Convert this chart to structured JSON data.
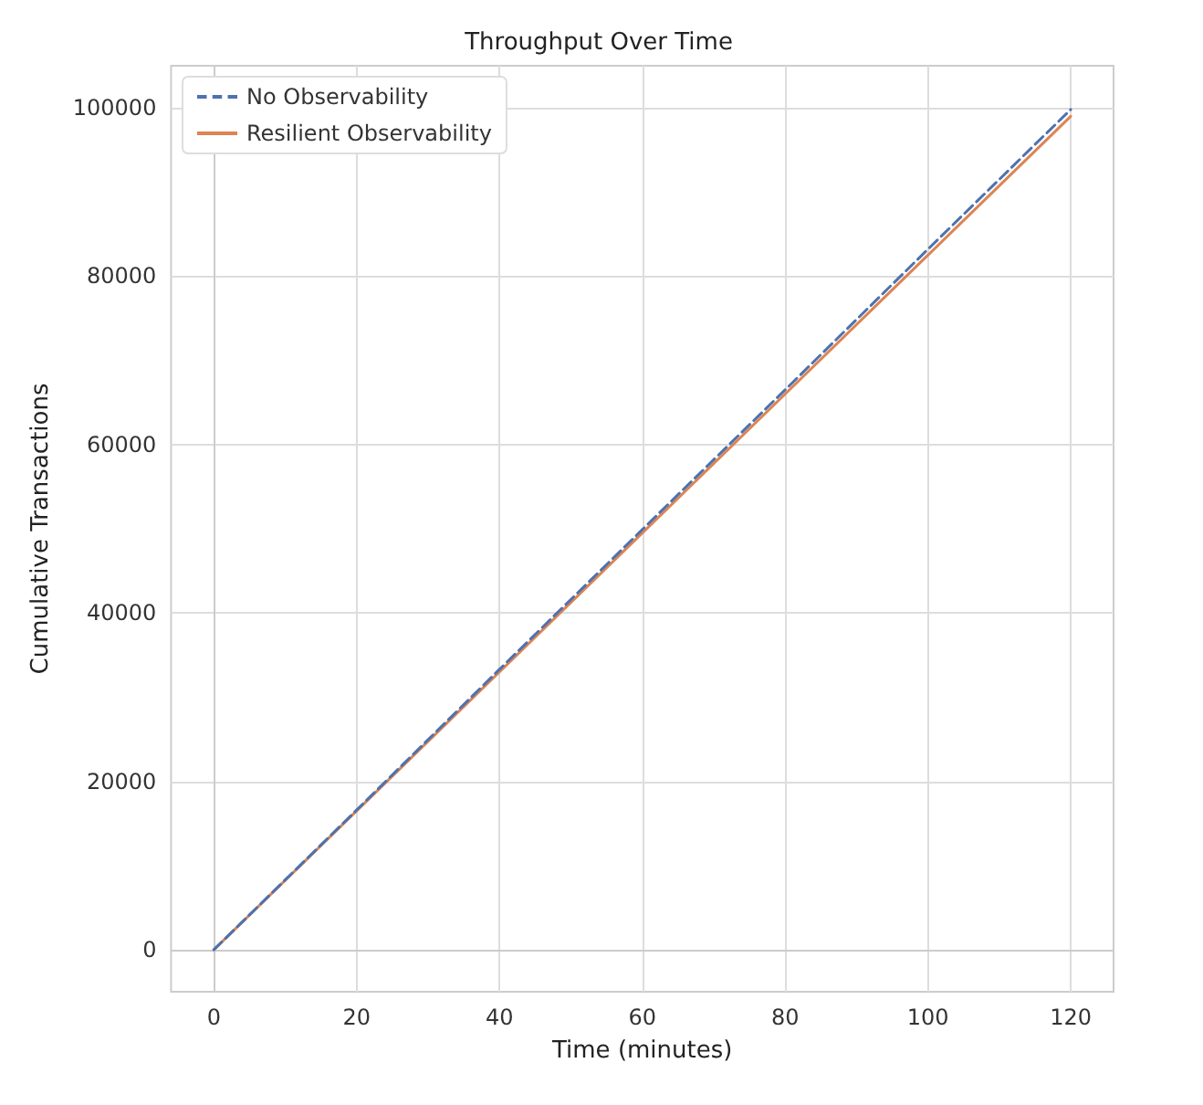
{
  "chart_data": {
    "type": "line",
    "title": "Throughput Over Time",
    "xlabel": "Time (minutes)",
    "ylabel": "Cumulative Transactions",
    "x": [
      0,
      20,
      40,
      60,
      80,
      100,
      120
    ],
    "series": [
      {
        "name": "No Observability",
        "color": "#4c72b0",
        "line_style": "dashed",
        "values": [
          0,
          16600,
          33300,
          49900,
          66500,
          83200,
          99800
        ]
      },
      {
        "name": "Resilient Observability",
        "color": "#dd8452",
        "line_style": "solid",
        "values": [
          0,
          16500,
          33000,
          49500,
          66000,
          82500,
          99000
        ]
      }
    ],
    "xlim": [
      -6,
      126
    ],
    "xticks": [
      0,
      20,
      40,
      60,
      80,
      100,
      120
    ],
    "ylim": [
      -5000,
      105000
    ],
    "yticks": [
      0,
      20000,
      40000,
      60000,
      80000,
      100000
    ],
    "grid": true,
    "legend": "top left",
    "marker": "none"
  }
}
